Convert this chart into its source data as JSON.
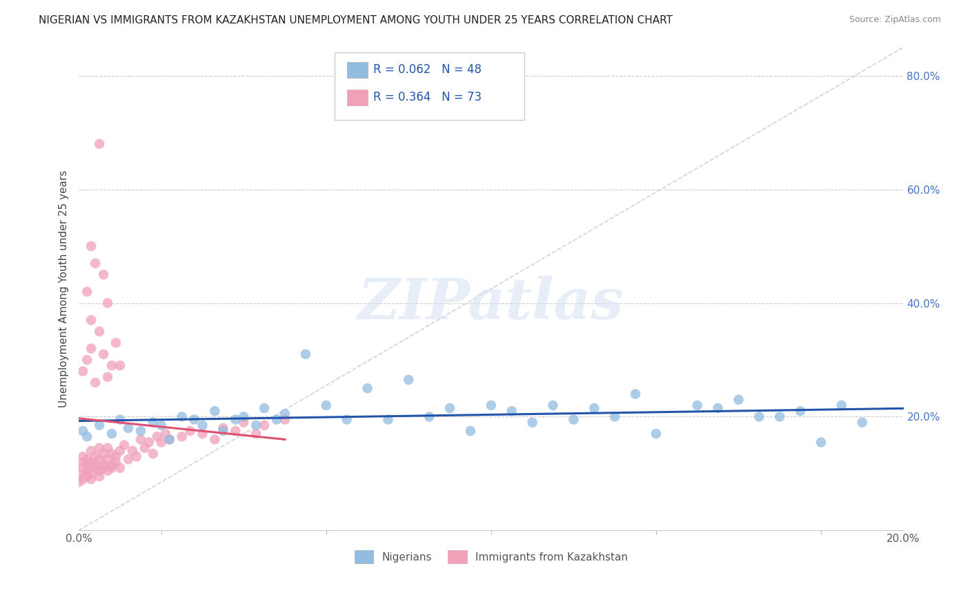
{
  "title": "NIGERIAN VS IMMIGRANTS FROM KAZAKHSTAN UNEMPLOYMENT AMONG YOUTH UNDER 25 YEARS CORRELATION CHART",
  "source": "Source: ZipAtlas.com",
  "ylabel": "Unemployment Among Youth under 25 years",
  "xlim": [
    0.0,
    0.2
  ],
  "ylim": [
    0.0,
    0.85
  ],
  "xticks": [
    0.0,
    0.04,
    0.08,
    0.12,
    0.16,
    0.2
  ],
  "xtick_labels": [
    "0.0%",
    "",
    "",
    "",
    "",
    "20.0%"
  ],
  "yticks": [
    0.0,
    0.2,
    0.4,
    0.6,
    0.8
  ],
  "ytick_labels": [
    "",
    "20.0%",
    "40.0%",
    "60.0%",
    "80.0%"
  ],
  "nigerians_x": [
    0.001,
    0.002,
    0.005,
    0.008,
    0.01,
    0.012,
    0.015,
    0.018,
    0.02,
    0.022,
    0.025,
    0.028,
    0.03,
    0.033,
    0.035,
    0.038,
    0.04,
    0.043,
    0.045,
    0.048,
    0.05,
    0.055,
    0.06,
    0.065,
    0.07,
    0.075,
    0.08,
    0.085,
    0.09,
    0.095,
    0.1,
    0.105,
    0.11,
    0.115,
    0.12,
    0.125,
    0.13,
    0.135,
    0.14,
    0.15,
    0.155,
    0.16,
    0.165,
    0.17,
    0.175,
    0.18,
    0.185,
    0.19
  ],
  "nigerians_y": [
    0.175,
    0.165,
    0.185,
    0.17,
    0.195,
    0.18,
    0.175,
    0.19,
    0.185,
    0.16,
    0.2,
    0.195,
    0.185,
    0.21,
    0.175,
    0.195,
    0.2,
    0.185,
    0.215,
    0.195,
    0.205,
    0.31,
    0.22,
    0.195,
    0.25,
    0.195,
    0.265,
    0.2,
    0.215,
    0.175,
    0.22,
    0.21,
    0.19,
    0.22,
    0.195,
    0.215,
    0.2,
    0.24,
    0.17,
    0.22,
    0.215,
    0.23,
    0.2,
    0.2,
    0.21,
    0.155,
    0.22,
    0.19
  ],
  "kazakhstan_x": [
    0.0,
    0.0,
    0.0,
    0.001,
    0.001,
    0.001,
    0.002,
    0.002,
    0.002,
    0.002,
    0.003,
    0.003,
    0.003,
    0.003,
    0.004,
    0.004,
    0.004,
    0.005,
    0.005,
    0.005,
    0.005,
    0.006,
    0.006,
    0.006,
    0.007,
    0.007,
    0.007,
    0.008,
    0.008,
    0.008,
    0.009,
    0.009,
    0.01,
    0.01,
    0.011,
    0.012,
    0.013,
    0.014,
    0.015,
    0.016,
    0.017,
    0.018,
    0.019,
    0.02,
    0.021,
    0.022,
    0.025,
    0.027,
    0.03,
    0.033,
    0.035,
    0.038,
    0.04,
    0.043,
    0.045,
    0.05,
    0.001,
    0.002,
    0.003,
    0.004,
    0.005,
    0.006,
    0.007,
    0.008,
    0.009,
    0.01,
    0.003,
    0.004,
    0.005,
    0.006,
    0.007,
    0.002,
    0.003
  ],
  "kazakhstan_y": [
    0.1,
    0.12,
    0.085,
    0.09,
    0.11,
    0.13,
    0.095,
    0.115,
    0.105,
    0.125,
    0.1,
    0.12,
    0.14,
    0.09,
    0.11,
    0.13,
    0.115,
    0.105,
    0.125,
    0.145,
    0.095,
    0.115,
    0.135,
    0.11,
    0.125,
    0.105,
    0.145,
    0.115,
    0.135,
    0.11,
    0.13,
    0.12,
    0.14,
    0.11,
    0.15,
    0.125,
    0.14,
    0.13,
    0.16,
    0.145,
    0.155,
    0.135,
    0.165,
    0.155,
    0.17,
    0.16,
    0.165,
    0.175,
    0.17,
    0.16,
    0.18,
    0.175,
    0.19,
    0.17,
    0.185,
    0.195,
    0.28,
    0.3,
    0.32,
    0.26,
    0.35,
    0.31,
    0.27,
    0.29,
    0.33,
    0.29,
    0.5,
    0.47,
    0.68,
    0.45,
    0.4,
    0.42,
    0.37
  ],
  "blue_color": "#92bce0",
  "pink_color": "#f0a0b8",
  "blue_line_color": "#2255aa",
  "pink_line_color": "#e05070",
  "diag_line_color": "#c8c8c8",
  "watermark_text": "ZIPatlas",
  "background_color": "#ffffff",
  "grid_color": "#cccccc",
  "legend_r1": "R = 0.062   N = 48",
  "legend_r2": "R = 0.364   N = 73"
}
